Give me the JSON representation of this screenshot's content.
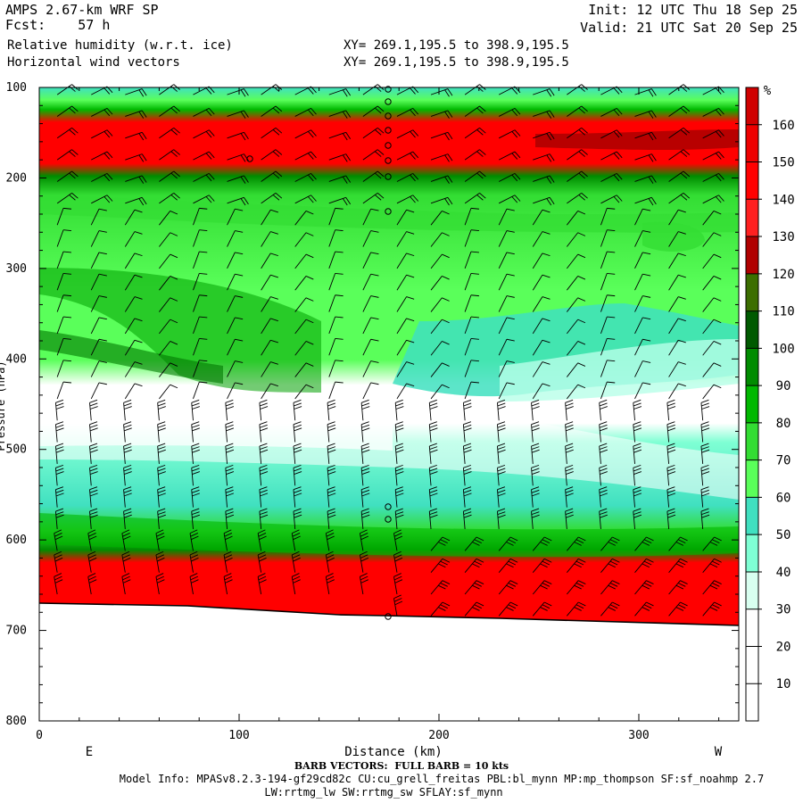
{
  "header": {
    "model": "AMPS 2.67-km WRF SP",
    "fcst_label": "Fcst:",
    "fcst_value": "57 h",
    "field1": "Relative humidity (w.r.t. ice)",
    "field2": "Horizontal wind vectors",
    "init": "Init: 12 UTC Thu 18 Sep 25",
    "valid": "Valid: 21 UTC Sat 20 Sep 25",
    "xy1": "XY= 269.1,195.5 to 398.9,195.5",
    "xy2": "XY= 269.1,195.5 to 398.9,195.5"
  },
  "footer": {
    "barb_note": "BARB VECTORS:  FULL BARB = 10 kts",
    "model_info": "Model Info: MPASv8.2.3-194-gf29cd82c CU:cu_grell_freitas PBL:bl_mynn MP:mp_thompson SF:sf_noahmp 2.7",
    "model_info2": "LW:rrtmg_lw SW:rrtmg_sw SFLAY:sf_mynn"
  },
  "colors": {
    "rh_levels": [
      "#ffffff",
      "#ffffff",
      "#ffffff",
      "#d8fff0",
      "#7fffd4",
      "#40e0c0",
      "#5aff5a",
      "#33dd33",
      "#00b800",
      "#008c00",
      "#005a00",
      "#3c6e00",
      "#b00000",
      "#ff2020",
      "#ff0000",
      "#ee0000",
      "#d00000"
    ],
    "terrain": "#ffffff",
    "barb": "#000000"
  },
  "chart_data": {
    "type": "heatmap",
    "title": "Relative humidity (w.r.t. ice)",
    "overlay": "Horizontal wind vectors (barbs)",
    "xlabel": "Distance (km)",
    "ylabel": "Pressure (hPa)",
    "xlim": [
      0,
      350
    ],
    "ylim": [
      100,
      800
    ],
    "xticks": [
      0,
      100,
      200,
      300
    ],
    "yticks": [
      100,
      200,
      300,
      400,
      500,
      600,
      700,
      800
    ],
    "x_endpoint_labels": {
      "left": "E",
      "right": "W"
    },
    "colorbar": {
      "unit": "%",
      "ticks": [
        10,
        20,
        30,
        40,
        50,
        60,
        70,
        80,
        90,
        100,
        110,
        120,
        130,
        140,
        150,
        160
      ],
      "bounds": [
        0,
        170
      ]
    },
    "rh_profile_left": [
      {
        "p": 100,
        "rh": 45
      },
      {
        "p": 115,
        "rh": 65
      },
      {
        "p": 130,
        "rh": 85
      },
      {
        "p": 150,
        "rh": 145
      },
      {
        "p": 185,
        "rh": 130
      },
      {
        "p": 205,
        "rh": 95
      },
      {
        "p": 225,
        "rh": 75
      },
      {
        "p": 300,
        "rh": 70
      },
      {
        "p": 350,
        "rh": 88
      },
      {
        "p": 420,
        "rh": 95
      },
      {
        "p": 470,
        "rh": 30
      },
      {
        "p": 520,
        "rh": 45
      },
      {
        "p": 570,
        "rh": 60
      },
      {
        "p": 600,
        "rh": 90
      },
      {
        "p": 620,
        "rh": 125
      },
      {
        "p": 670,
        "rh": 140
      }
    ],
    "surface_pressure": [
      {
        "x": 0,
        "p": 672
      },
      {
        "x": 150,
        "p": 685
      },
      {
        "x": 175,
        "p": 688
      },
      {
        "x": 350,
        "p": 697
      }
    ]
  }
}
